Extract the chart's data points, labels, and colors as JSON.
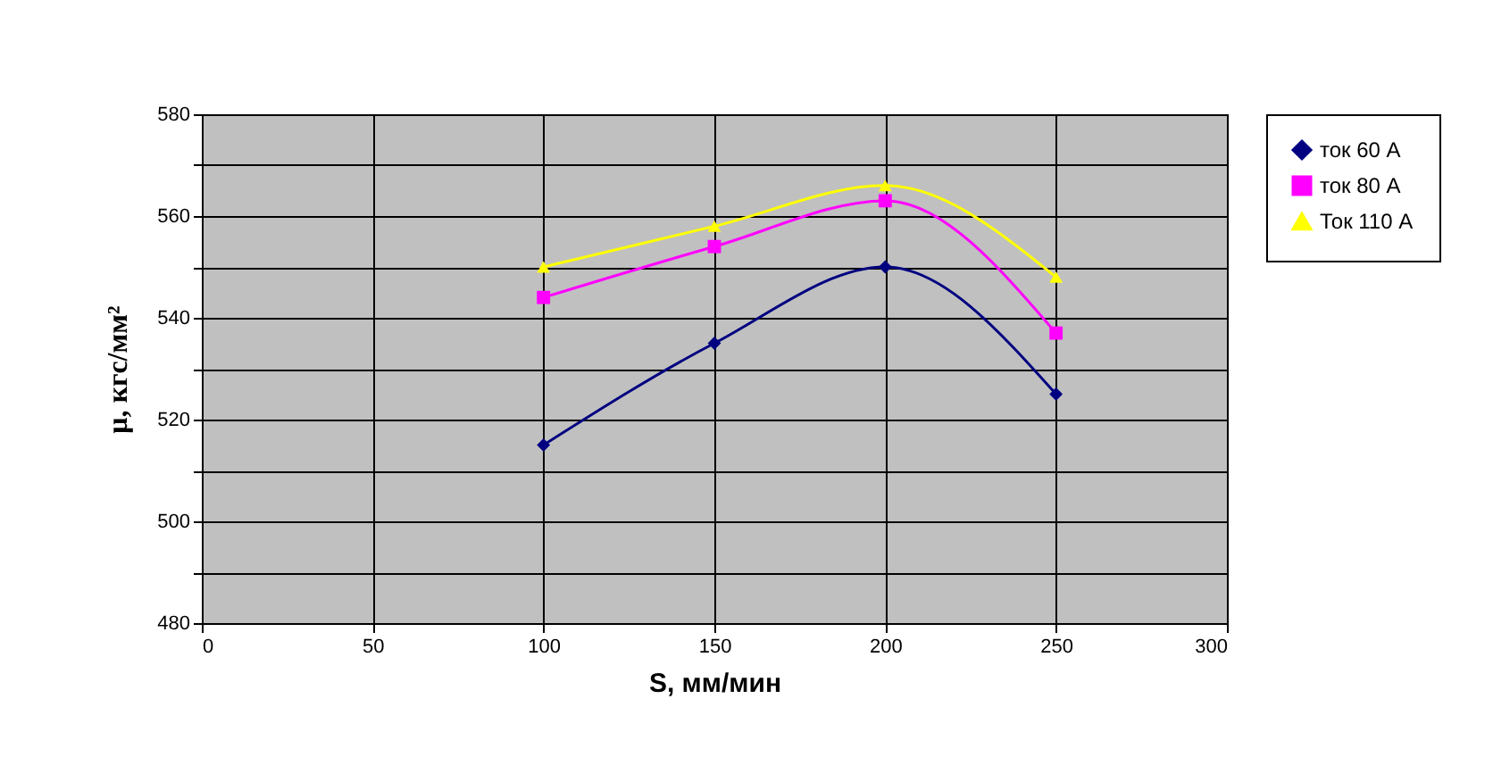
{
  "chart_data": {
    "type": "line",
    "xlabel": "S,  мм/мин",
    "ylabel": "μ, кгс/мм²",
    "x": [
      100,
      150,
      200,
      250
    ],
    "series": [
      {
        "name": "ток 60 А",
        "color": "#000080",
        "marker": "diamond",
        "values": [
          515,
          535,
          550,
          525
        ]
      },
      {
        "name": "ток 80 А",
        "color": "#ff00ff",
        "marker": "square",
        "values": [
          544,
          554,
          563,
          537
        ]
      },
      {
        "name": "Ток 110 А",
        "color": "#ffff00",
        "marker": "triangle",
        "values": [
          550,
          558,
          566,
          548
        ]
      }
    ],
    "xlim": [
      0,
      300
    ],
    "xticks": [
      0,
      50,
      100,
      150,
      200,
      250,
      300
    ],
    "ylim": [
      480,
      580
    ],
    "yticks": [
      480,
      {
        "value": 490,
        "label": null
      },
      500,
      {
        "value": 510,
        "label": null
      },
      520,
      {
        "value": 530,
        "label": null
      },
      540,
      {
        "value": 550,
        "label": null
      },
      560,
      {
        "value": 570,
        "label": null
      },
      580
    ],
    "grid": true,
    "legend": "right",
    "line_style": "solid"
  }
}
